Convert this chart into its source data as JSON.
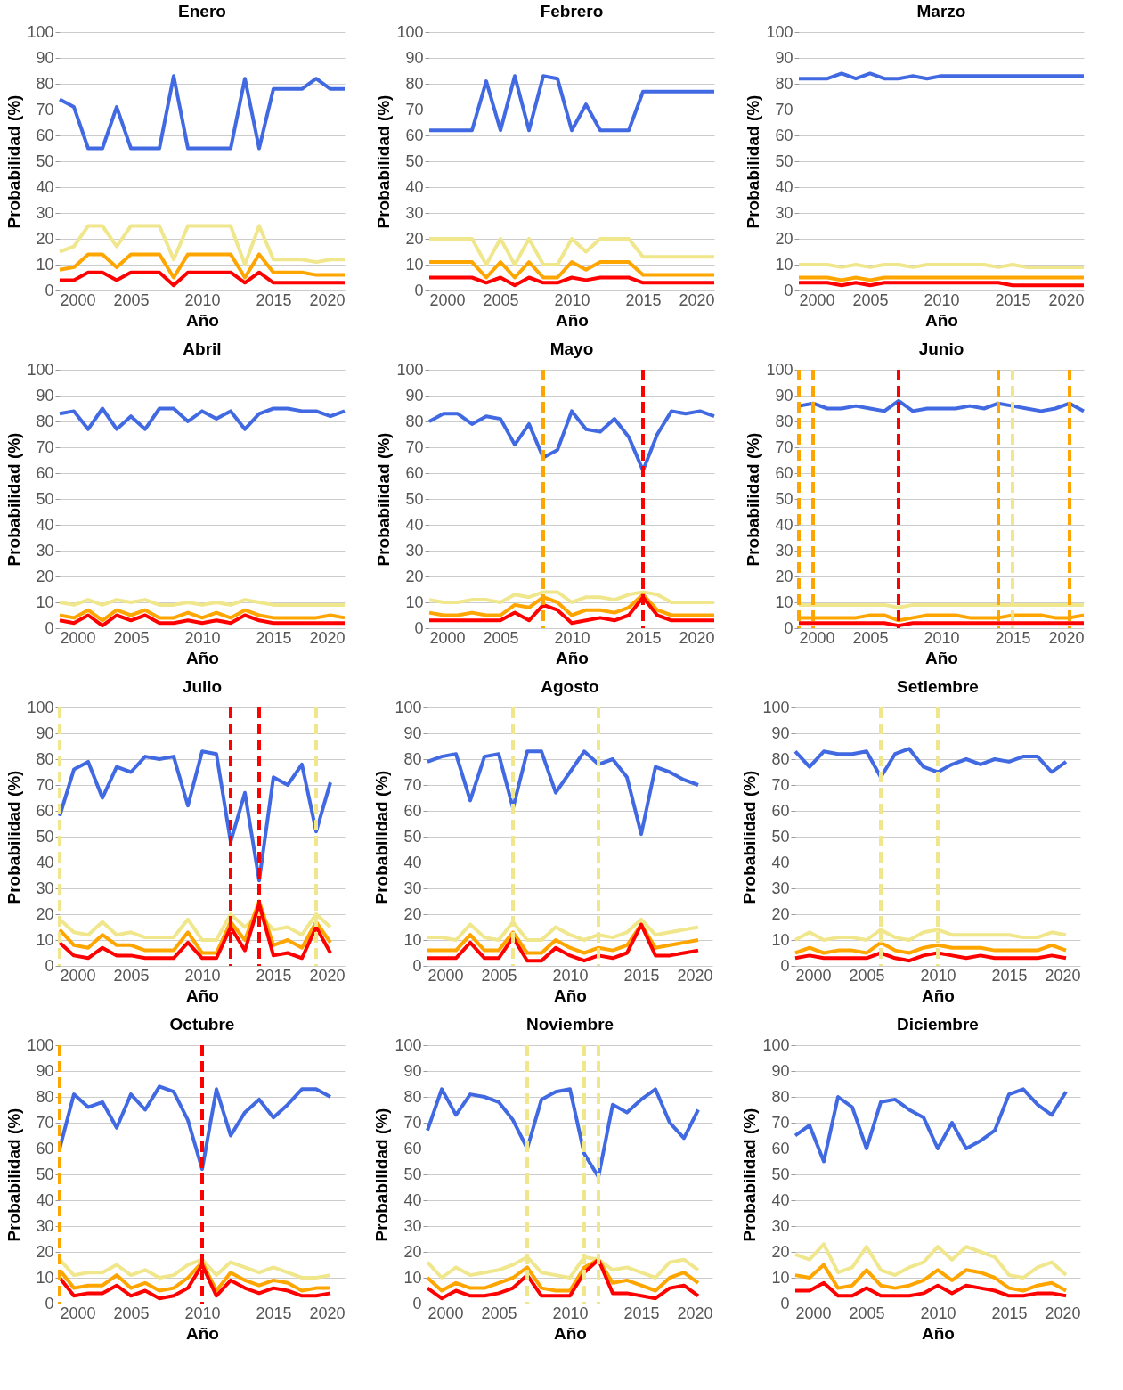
{
  "chart_data": [
    {
      "type": "line",
      "title": "Enero",
      "xlabel": "Año",
      "ylabel": "Probabilidad (%)",
      "x": [
        2000,
        2001,
        2002,
        2003,
        2004,
        2005,
        2006,
        2007,
        2008,
        2009,
        2010,
        2011,
        2012,
        2013,
        2014,
        2015,
        2016,
        2017,
        2018,
        2019,
        2020
      ],
      "xlim": [
        2000,
        2020
      ],
      "ylim": [
        0,
        100
      ],
      "xticks": [
        2000,
        2005,
        2010,
        2015,
        2020
      ],
      "yticks": [
        0,
        10,
        20,
        30,
        40,
        50,
        60,
        70,
        80,
        90,
        100
      ],
      "grid": "y",
      "legend": false,
      "series": [
        {
          "color": "#4169e1",
          "values": [
            74,
            71,
            55,
            55,
            71,
            55,
            55,
            55,
            83,
            55,
            55,
            55,
            55,
            82,
            55,
            78,
            78,
            78,
            82,
            78,
            78
          ]
        },
        {
          "color": "#f0e68c",
          "values": [
            15,
            17,
            25,
            25,
            17,
            25,
            25,
            25,
            12,
            25,
            25,
            25,
            25,
            10,
            25,
            12,
            12,
            12,
            11,
            12,
            12
          ]
        },
        {
          "color": "#ffa500",
          "values": [
            8,
            9,
            14,
            14,
            9,
            14,
            14,
            14,
            5,
            14,
            14,
            14,
            14,
            5,
            14,
            7,
            7,
            7,
            6,
            6,
            6
          ]
        },
        {
          "color": "#ff0000",
          "values": [
            4,
            4,
            7,
            7,
            4,
            7,
            7,
            7,
            2,
            7,
            7,
            7,
            7,
            3,
            7,
            3,
            3,
            3,
            3,
            3,
            3
          ]
        }
      ]
    },
    {
      "type": "line",
      "title": "Febrero",
      "xlabel": "Año",
      "ylabel": "Probabilidad (%)",
      "x": [
        2000,
        2001,
        2002,
        2003,
        2004,
        2005,
        2006,
        2007,
        2008,
        2009,
        2010,
        2011,
        2012,
        2013,
        2014,
        2015,
        2016,
        2017,
        2018,
        2019,
        2020
      ],
      "xlim": [
        2000,
        2020
      ],
      "ylim": [
        0,
        100
      ],
      "xticks": [
        2000,
        2005,
        2010,
        2015,
        2020
      ],
      "yticks": [
        0,
        10,
        20,
        30,
        40,
        50,
        60,
        70,
        80,
        90,
        100
      ],
      "grid": "y",
      "legend": false,
      "series": [
        {
          "color": "#4169e1",
          "values": [
            62,
            62,
            62,
            62,
            81,
            62,
            83,
            62,
            83,
            82,
            62,
            72,
            62,
            62,
            62,
            77,
            77,
            77,
            77,
            77,
            77
          ]
        },
        {
          "color": "#f0e68c",
          "values": [
            20,
            20,
            20,
            20,
            10,
            20,
            10,
            20,
            10,
            10,
            20,
            15,
            20,
            20,
            20,
            13,
            13,
            13,
            13,
            13,
            13
          ]
        },
        {
          "color": "#ffa500",
          "values": [
            11,
            11,
            11,
            11,
            5,
            11,
            5,
            11,
            5,
            5,
            11,
            8,
            11,
            11,
            11,
            6,
            6,
            6,
            6,
            6,
            6
          ]
        },
        {
          "color": "#ff0000",
          "values": [
            5,
            5,
            5,
            5,
            3,
            5,
            2,
            5,
            3,
            3,
            5,
            4,
            5,
            5,
            5,
            3,
            3,
            3,
            3,
            3,
            3
          ]
        }
      ]
    },
    {
      "type": "line",
      "title": "Marzo",
      "xlabel": "Año",
      "ylabel": "Probabilidad (%)",
      "x": [
        2000,
        2001,
        2002,
        2003,
        2004,
        2005,
        2006,
        2007,
        2008,
        2009,
        2010,
        2011,
        2012,
        2013,
        2014,
        2015,
        2016,
        2017,
        2018,
        2019,
        2020
      ],
      "xlim": [
        2000,
        2020
      ],
      "ylim": [
        0,
        100
      ],
      "xticks": [
        2000,
        2005,
        2010,
        2015,
        2020
      ],
      "yticks": [
        0,
        10,
        20,
        30,
        40,
        50,
        60,
        70,
        80,
        90,
        100
      ],
      "grid": "y",
      "legend": false,
      "series": [
        {
          "color": "#4169e1",
          "values": [
            82,
            82,
            82,
            84,
            82,
            84,
            82,
            82,
            83,
            82,
            83,
            83,
            83,
            83,
            83,
            83,
            83,
            83,
            83,
            83,
            83
          ]
        },
        {
          "color": "#f0e68c",
          "values": [
            10,
            10,
            10,
            9,
            10,
            9,
            10,
            10,
            9,
            10,
            10,
            10,
            10,
            10,
            9,
            10,
            9,
            9,
            9,
            9,
            9
          ]
        },
        {
          "color": "#ffa500",
          "values": [
            5,
            5,
            5,
            4,
            5,
            4,
            5,
            5,
            5,
            5,
            5,
            5,
            5,
            5,
            5,
            5,
            5,
            5,
            5,
            5,
            5
          ]
        },
        {
          "color": "#ff0000",
          "values": [
            3,
            3,
            3,
            2,
            3,
            2,
            3,
            3,
            3,
            3,
            3,
            3,
            3,
            3,
            3,
            2,
            2,
            2,
            2,
            2,
            2
          ]
        }
      ]
    },
    {
      "type": "line",
      "title": "Abril",
      "xlabel": "Año",
      "ylabel": "Probabilidad (%)",
      "x": [
        2000,
        2001,
        2002,
        2003,
        2004,
        2005,
        2006,
        2007,
        2008,
        2009,
        2010,
        2011,
        2012,
        2013,
        2014,
        2015,
        2016,
        2017,
        2018,
        2019,
        2020
      ],
      "xlim": [
        2000,
        2020
      ],
      "ylim": [
        0,
        100
      ],
      "xticks": [
        2000,
        2005,
        2010,
        2015,
        2020
      ],
      "yticks": [
        0,
        10,
        20,
        30,
        40,
        50,
        60,
        70,
        80,
        90,
        100
      ],
      "grid": "y",
      "legend": false,
      "series": [
        {
          "color": "#4169e1",
          "values": [
            83,
            84,
            77,
            85,
            77,
            82,
            77,
            85,
            85,
            80,
            84,
            81,
            84,
            77,
            83,
            85,
            85,
            84,
            84,
            82,
            84
          ]
        },
        {
          "color": "#f0e68c",
          "values": [
            10,
            9,
            11,
            9,
            11,
            10,
            11,
            9,
            9,
            10,
            9,
            10,
            9,
            11,
            10,
            9,
            9,
            9,
            9,
            9,
            9
          ]
        },
        {
          "color": "#ffa500",
          "values": [
            5,
            4,
            7,
            3,
            7,
            5,
            7,
            4,
            4,
            6,
            4,
            6,
            4,
            7,
            5,
            4,
            4,
            4,
            4,
            5,
            4
          ]
        },
        {
          "color": "#ff0000",
          "values": [
            3,
            2,
            5,
            1,
            5,
            3,
            5,
            2,
            2,
            3,
            2,
            3,
            2,
            5,
            3,
            2,
            2,
            2,
            2,
            2,
            2
          ]
        }
      ]
    },
    {
      "type": "line",
      "title": "Mayo",
      "xlabel": "Año",
      "ylabel": "Probabilidad (%)",
      "x": [
        2000,
        2001,
        2002,
        2003,
        2004,
        2005,
        2006,
        2007,
        2008,
        2009,
        2010,
        2011,
        2012,
        2013,
        2014,
        2015,
        2016,
        2017,
        2018,
        2019,
        2020
      ],
      "xlim": [
        2000,
        2020
      ],
      "ylim": [
        0,
        100
      ],
      "xticks": [
        2000,
        2005,
        2010,
        2015,
        2020
      ],
      "yticks": [
        0,
        10,
        20,
        30,
        40,
        50,
        60,
        70,
        80,
        90,
        100
      ],
      "grid": "y",
      "legend": false,
      "series": [
        {
          "color": "#4169e1",
          "values": [
            80,
            83,
            83,
            79,
            82,
            81,
            71,
            79,
            66,
            69,
            84,
            77,
            76,
            81,
            74,
            61,
            75,
            84,
            83,
            84,
            82
          ]
        },
        {
          "color": "#f0e68c",
          "values": [
            11,
            10,
            10,
            11,
            11,
            10,
            13,
            12,
            14,
            14,
            10,
            12,
            12,
            11,
            13,
            14,
            13,
            10,
            10,
            10,
            10
          ]
        },
        {
          "color": "#ffa500",
          "values": [
            6,
            5,
            5,
            6,
            5,
            5,
            9,
            8,
            12,
            10,
            5,
            7,
            7,
            6,
            8,
            13,
            7,
            5,
            5,
            5,
            5
          ]
        },
        {
          "color": "#ff0000",
          "values": [
            3,
            3,
            3,
            3,
            3,
            3,
            6,
            3,
            9,
            7,
            2,
            3,
            4,
            3,
            5,
            12,
            5,
            3,
            3,
            3,
            3
          ]
        }
      ],
      "ref_lines": [
        {
          "axis": "x",
          "value": 2008,
          "color": "#ffa500",
          "line_style": "dashed"
        },
        {
          "axis": "x",
          "value": 2015,
          "color": "#ff0000",
          "line_style": "dashed"
        }
      ]
    },
    {
      "type": "line",
      "title": "Junio",
      "xlabel": "Año",
      "ylabel": "Probabilidad (%)",
      "x": [
        2000,
        2001,
        2002,
        2003,
        2004,
        2005,
        2006,
        2007,
        2008,
        2009,
        2010,
        2011,
        2012,
        2013,
        2014,
        2015,
        2016,
        2017,
        2018,
        2019,
        2020
      ],
      "xlim": [
        2000,
        2020
      ],
      "ylim": [
        0,
        100
      ],
      "xticks": [
        2000,
        2005,
        2010,
        2015,
        2020
      ],
      "yticks": [
        0,
        10,
        20,
        30,
        40,
        50,
        60,
        70,
        80,
        90,
        100
      ],
      "grid": "y",
      "legend": false,
      "series": [
        {
          "color": "#4169e1",
          "values": [
            86,
            87,
            85,
            85,
            86,
            85,
            84,
            88,
            84,
            85,
            85,
            85,
            86,
            85,
            87,
            86,
            85,
            84,
            85,
            87,
            84
          ]
        },
        {
          "color": "#f0e68c",
          "values": [
            9,
            9,
            9,
            9,
            9,
            9,
            9,
            8,
            9,
            9,
            9,
            9,
            9,
            9,
            9,
            9,
            9,
            9,
            9,
            9,
            9
          ]
        },
        {
          "color": "#ffa500",
          "values": [
            4,
            4,
            4,
            4,
            4,
            5,
            5,
            3,
            4,
            5,
            5,
            5,
            4,
            4,
            4,
            5,
            5,
            5,
            4,
            4,
            5
          ]
        },
        {
          "color": "#ff0000",
          "values": [
            2,
            2,
            2,
            2,
            2,
            2,
            2,
            1,
            2,
            2,
            2,
            2,
            2,
            2,
            2,
            2,
            2,
            2,
            2,
            2,
            2
          ]
        }
      ],
      "ref_lines": [
        {
          "axis": "x",
          "value": 2000,
          "color": "#ffa500",
          "line_style": "dashed"
        },
        {
          "axis": "x",
          "value": 2001,
          "color": "#ffa500",
          "line_style": "dashed"
        },
        {
          "axis": "x",
          "value": 2007,
          "color": "#ff0000",
          "line_style": "dashed"
        },
        {
          "axis": "x",
          "value": 2014,
          "color": "#ffa500",
          "line_style": "dashed"
        },
        {
          "axis": "x",
          "value": 2015,
          "color": "#f0e68c",
          "line_style": "dashed"
        },
        {
          "axis": "x",
          "value": 2019,
          "color": "#ffa500",
          "line_style": "dashed"
        }
      ]
    },
    {
      "type": "line",
      "title": "Julio",
      "xlabel": "Año",
      "ylabel": "Probabilidad (%)",
      "x": [
        2000,
        2001,
        2002,
        2003,
        2004,
        2005,
        2006,
        2007,
        2008,
        2009,
        2010,
        2011,
        2012,
        2013,
        2014,
        2015,
        2016,
        2017,
        2018,
        2019
      ],
      "xlim": [
        2000,
        2020
      ],
      "ylim": [
        0,
        100
      ],
      "xticks": [
        2000,
        2005,
        2010,
        2015,
        2020
      ],
      "yticks": [
        0,
        10,
        20,
        30,
        40,
        50,
        60,
        70,
        80,
        90,
        100
      ],
      "grid": "y",
      "legend": false,
      "series": [
        {
          "color": "#4169e1",
          "values": [
            58,
            76,
            79,
            65,
            77,
            75,
            81,
            80,
            81,
            62,
            83,
            82,
            48,
            67,
            33,
            73,
            70,
            78,
            52,
            71
          ]
        },
        {
          "color": "#f0e68c",
          "values": [
            18,
            13,
            12,
            17,
            12,
            13,
            11,
            11,
            11,
            18,
            10,
            10,
            20,
            15,
            20,
            14,
            15,
            12,
            20,
            15
          ]
        },
        {
          "color": "#ffa500",
          "values": [
            14,
            8,
            7,
            12,
            8,
            8,
            6,
            6,
            6,
            13,
            5,
            5,
            17,
            10,
            25,
            8,
            10,
            7,
            17,
            9
          ]
        },
        {
          "color": "#ff0000",
          "values": [
            9,
            4,
            3,
            7,
            4,
            4,
            3,
            3,
            3,
            9,
            3,
            3,
            15,
            6,
            24,
            4,
            5,
            3,
            15,
            5
          ]
        }
      ],
      "ref_lines": [
        {
          "axis": "x",
          "value": 2000,
          "color": "#f0e68c",
          "line_style": "dashed"
        },
        {
          "axis": "x",
          "value": 2012,
          "color": "#ff0000",
          "line_style": "dashed"
        },
        {
          "axis": "x",
          "value": 2014,
          "color": "#ff0000",
          "line_style": "dashed"
        },
        {
          "axis": "x",
          "value": 2018,
          "color": "#f0e68c",
          "line_style": "dashed"
        }
      ]
    },
    {
      "type": "line",
      "title": "Agosto",
      "xlabel": "Año",
      "ylabel": "Probabilidad (%)",
      "x": [
        2000,
        2001,
        2002,
        2003,
        2004,
        2005,
        2006,
        2007,
        2008,
        2009,
        2010,
        2011,
        2012,
        2013,
        2014,
        2015,
        2016,
        2017,
        2018,
        2019
      ],
      "xlim": [
        2000,
        2020
      ],
      "ylim": [
        0,
        100
      ],
      "xticks": [
        2000,
        2005,
        2010,
        2015,
        2020
      ],
      "yticks": [
        0,
        10,
        20,
        30,
        40,
        50,
        60,
        70,
        80,
        90,
        100
      ],
      "grid": "y",
      "legend": false,
      "series": [
        {
          "color": "#4169e1",
          "values": [
            79,
            81,
            82,
            64,
            81,
            82,
            61,
            83,
            83,
            67,
            75,
            83,
            78,
            80,
            73,
            51,
            77,
            75,
            72,
            70
          ]
        },
        {
          "color": "#f0e68c",
          "values": [
            11,
            11,
            10,
            16,
            11,
            10,
            17,
            10,
            10,
            15,
            12,
            10,
            12,
            11,
            13,
            18,
            12,
            13,
            14,
            15
          ]
        },
        {
          "color": "#ffa500",
          "values": [
            6,
            6,
            6,
            12,
            6,
            6,
            13,
            5,
            5,
            10,
            7,
            5,
            7,
            6,
            8,
            16,
            7,
            8,
            9,
            10
          ]
        },
        {
          "color": "#ff0000",
          "values": [
            3,
            3,
            3,
            9,
            3,
            3,
            11,
            2,
            2,
            7,
            4,
            2,
            4,
            3,
            5,
            16,
            4,
            4,
            5,
            6
          ]
        }
      ],
      "ref_lines": [
        {
          "axis": "x",
          "value": 2006,
          "color": "#f0e68c",
          "line_style": "dashed"
        },
        {
          "axis": "x",
          "value": 2012,
          "color": "#f0e68c",
          "line_style": "dashed"
        }
      ]
    },
    {
      "type": "line",
      "title": "Setiembre",
      "xlabel": "Año",
      "ylabel": "Probabilidad (%)",
      "x": [
        2000,
        2001,
        2002,
        2003,
        2004,
        2005,
        2006,
        2007,
        2008,
        2009,
        2010,
        2011,
        2012,
        2013,
        2014,
        2015,
        2016,
        2017,
        2018,
        2019
      ],
      "xlim": [
        2000,
        2020
      ],
      "ylim": [
        0,
        100
      ],
      "xticks": [
        2000,
        2005,
        2010,
        2015,
        2020
      ],
      "yticks": [
        0,
        10,
        20,
        30,
        40,
        50,
        60,
        70,
        80,
        90,
        100
      ],
      "grid": "y",
      "legend": false,
      "series": [
        {
          "color": "#4169e1",
          "values": [
            83,
            77,
            83,
            82,
            82,
            83,
            73,
            82,
            84,
            77,
            75,
            78,
            80,
            78,
            80,
            79,
            81,
            81,
            75,
            79
          ]
        },
        {
          "color": "#f0e68c",
          "values": [
            10,
            13,
            10,
            11,
            11,
            10,
            14,
            11,
            10,
            13,
            14,
            12,
            12,
            12,
            12,
            12,
            11,
            11,
            13,
            12
          ]
        },
        {
          "color": "#ffa500",
          "values": [
            5,
            7,
            5,
            6,
            6,
            5,
            9,
            6,
            5,
            7,
            8,
            7,
            7,
            7,
            6,
            6,
            6,
            6,
            8,
            6
          ]
        },
        {
          "color": "#ff0000",
          "values": [
            3,
            4,
            3,
            3,
            3,
            3,
            5,
            3,
            2,
            4,
            5,
            4,
            3,
            4,
            3,
            3,
            3,
            3,
            4,
            3
          ]
        }
      ],
      "ref_lines": [
        {
          "axis": "x",
          "value": 2006,
          "color": "#f0e68c",
          "line_style": "dashed"
        },
        {
          "axis": "x",
          "value": 2010,
          "color": "#f0e68c",
          "line_style": "dashed"
        }
      ]
    },
    {
      "type": "line",
      "title": "Octubre",
      "xlabel": "Año",
      "ylabel": "Probabilidad (%)",
      "x": [
        2000,
        2001,
        2002,
        2003,
        2004,
        2005,
        2006,
        2007,
        2008,
        2009,
        2010,
        2011,
        2012,
        2013,
        2014,
        2015,
        2016,
        2017,
        2018,
        2019
      ],
      "xlim": [
        2000,
        2020
      ],
      "ylim": [
        0,
        100
      ],
      "xticks": [
        2000,
        2005,
        2010,
        2015,
        2020
      ],
      "yticks": [
        0,
        10,
        20,
        30,
        40,
        50,
        60,
        70,
        80,
        90,
        100
      ],
      "grid": "y",
      "legend": false,
      "series": [
        {
          "color": "#4169e1",
          "values": [
            60,
            81,
            76,
            78,
            68,
            81,
            75,
            84,
            82,
            71,
            52,
            83,
            65,
            74,
            79,
            72,
            77,
            83,
            83,
            80
          ]
        },
        {
          "color": "#f0e68c",
          "values": [
            17,
            11,
            12,
            12,
            15,
            11,
            13,
            10,
            11,
            15,
            17,
            11,
            16,
            14,
            12,
            14,
            12,
            10,
            10,
            11
          ]
        },
        {
          "color": "#ffa500",
          "values": [
            13,
            6,
            7,
            7,
            11,
            6,
            8,
            5,
            6,
            10,
            16,
            5,
            12,
            9,
            7,
            9,
            8,
            5,
            6,
            6
          ]
        },
        {
          "color": "#ff0000",
          "values": [
            10,
            3,
            4,
            4,
            7,
            3,
            5,
            2,
            3,
            6,
            15,
            3,
            9,
            6,
            4,
            6,
            5,
            3,
            3,
            4
          ]
        }
      ],
      "ref_lines": [
        {
          "axis": "x",
          "value": 2000,
          "color": "#ffa500",
          "line_style": "dashed"
        },
        {
          "axis": "x",
          "value": 2010,
          "color": "#ff0000",
          "line_style": "dashed"
        }
      ]
    },
    {
      "type": "line",
      "title": "Noviembre",
      "xlabel": "Año",
      "ylabel": "Probabilidad (%)",
      "x": [
        2000,
        2001,
        2002,
        2003,
        2004,
        2005,
        2006,
        2007,
        2008,
        2009,
        2010,
        2011,
        2012,
        2013,
        2014,
        2015,
        2016,
        2017,
        2018,
        2019
      ],
      "xlim": [
        2000,
        2020
      ],
      "ylim": [
        0,
        100
      ],
      "xticks": [
        2000,
        2005,
        2010,
        2015,
        2020
      ],
      "yticks": [
        0,
        10,
        20,
        30,
        40,
        50,
        60,
        70,
        80,
        90,
        100
      ],
      "grid": "y",
      "legend": false,
      "series": [
        {
          "color": "#4169e1",
          "values": [
            67,
            83,
            73,
            81,
            80,
            78,
            71,
            60,
            79,
            82,
            83,
            58,
            49,
            77,
            74,
            79,
            83,
            70,
            64,
            75
          ]
        },
        {
          "color": "#f0e68c",
          "values": [
            16,
            10,
            14,
            11,
            12,
            13,
            15,
            18,
            12,
            11,
            10,
            18,
            17,
            13,
            14,
            12,
            10,
            16,
            17,
            13
          ]
        },
        {
          "color": "#ffa500",
          "values": [
            10,
            5,
            8,
            6,
            6,
            8,
            10,
            14,
            6,
            5,
            5,
            14,
            17,
            8,
            9,
            7,
            5,
            10,
            12,
            8
          ]
        },
        {
          "color": "#ff0000",
          "values": [
            6,
            2,
            5,
            3,
            3,
            4,
            6,
            11,
            3,
            3,
            3,
            12,
            17,
            4,
            4,
            3,
            2,
            6,
            7,
            3
          ]
        }
      ],
      "ref_lines": [
        {
          "axis": "x",
          "value": 2007,
          "color": "#f0e68c",
          "line_style": "dashed"
        },
        {
          "axis": "x",
          "value": 2011,
          "color": "#f0e68c",
          "line_style": "dashed"
        },
        {
          "axis": "x",
          "value": 2012,
          "color": "#f0e68c",
          "line_style": "dashed"
        }
      ]
    },
    {
      "type": "line",
      "title": "Diciembre",
      "xlabel": "Año",
      "ylabel": "Probabilidad (%)",
      "x": [
        2000,
        2001,
        2002,
        2003,
        2004,
        2005,
        2006,
        2007,
        2008,
        2009,
        2010,
        2011,
        2012,
        2013,
        2014,
        2015,
        2016,
        2017,
        2018,
        2019
      ],
      "xlim": [
        2000,
        2020
      ],
      "ylim": [
        0,
        100
      ],
      "xticks": [
        2000,
        2005,
        2010,
        2015,
        2020
      ],
      "yticks": [
        0,
        10,
        20,
        30,
        40,
        50,
        60,
        70,
        80,
        90,
        100
      ],
      "grid": "y",
      "legend": false,
      "series": [
        {
          "color": "#4169e1",
          "values": [
            65,
            69,
            55,
            80,
            76,
            60,
            78,
            79,
            75,
            72,
            60,
            70,
            60,
            63,
            67,
            81,
            83,
            77,
            73,
            82
          ]
        },
        {
          "color": "#f0e68c",
          "values": [
            19,
            17,
            23,
            12,
            14,
            22,
            13,
            11,
            14,
            16,
            22,
            17,
            22,
            20,
            18,
            11,
            10,
            14,
            16,
            11
          ]
        },
        {
          "color": "#ffa500",
          "values": [
            11,
            10,
            15,
            6,
            7,
            13,
            7,
            6,
            7,
            9,
            13,
            9,
            13,
            12,
            10,
            6,
            5,
            7,
            8,
            5
          ]
        },
        {
          "color": "#ff0000",
          "values": [
            5,
            5,
            8,
            3,
            3,
            6,
            3,
            3,
            3,
            4,
            7,
            4,
            7,
            6,
            5,
            3,
            3,
            4,
            4,
            3
          ]
        }
      ]
    }
  ]
}
